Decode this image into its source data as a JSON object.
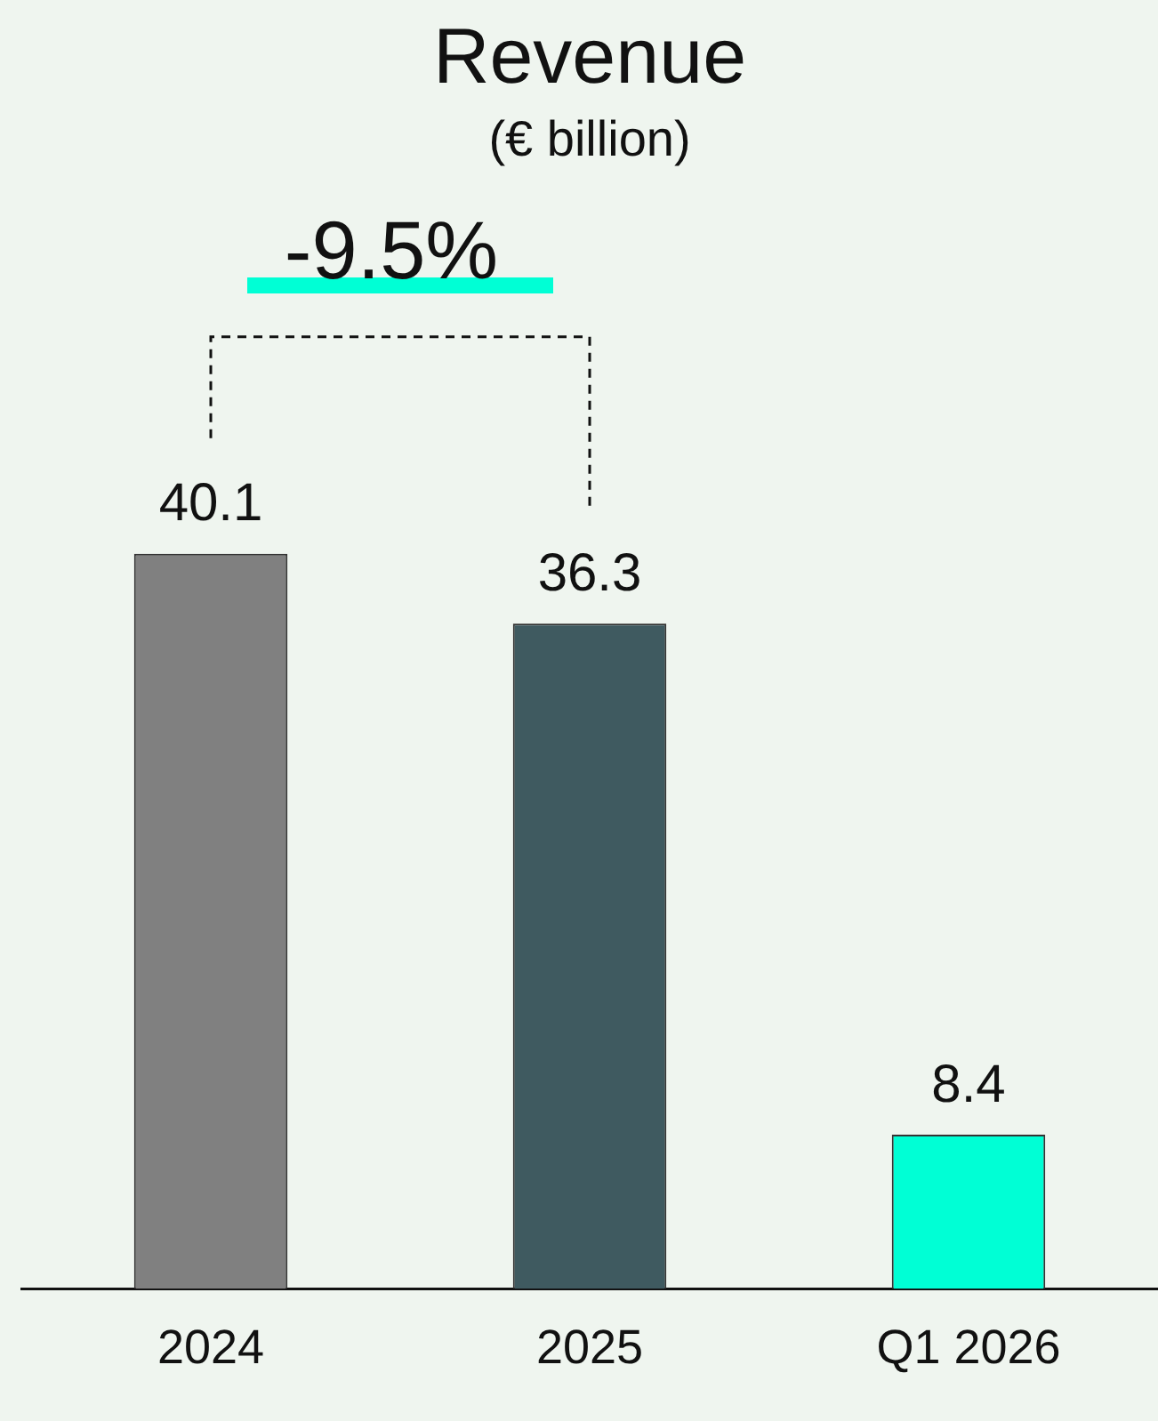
{
  "chart_data": {
    "type": "bar",
    "title": "Revenue",
    "subtitle": "(€ billion)",
    "categories": [
      "2024",
      "2025",
      "Q1 2026"
    ],
    "values": [
      40.1,
      36.3,
      8.4
    ],
    "colors": [
      "#808080",
      "#3f5a60",
      "#00ffd5"
    ],
    "data_labels": true,
    "annotations": [
      "-9.5%"
    ],
    "grid": false,
    "legend": false
  }
}
